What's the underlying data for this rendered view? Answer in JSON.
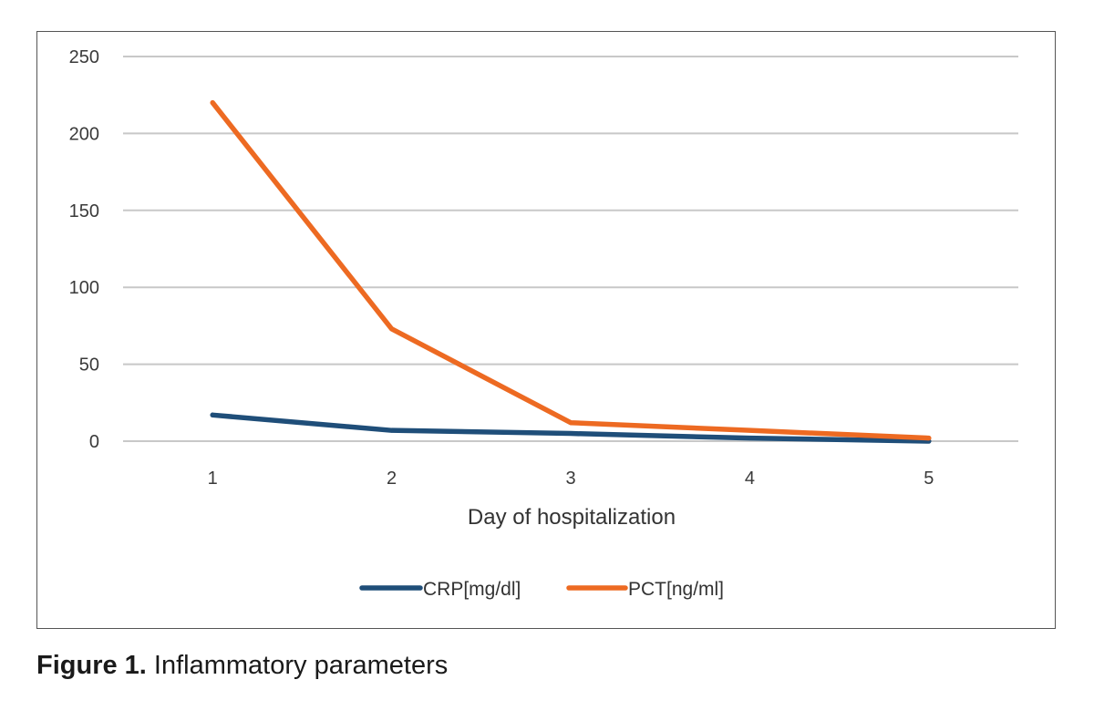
{
  "chart_data": {
    "type": "line",
    "categories": [
      "1",
      "2",
      "3",
      "4",
      "5"
    ],
    "series": [
      {
        "name": "CRP[mg/dl]",
        "values": [
          17,
          7,
          5,
          2,
          0
        ],
        "color": "#1f4e79"
      },
      {
        "name": "PCT[ng/ml]",
        "values": [
          220,
          73,
          12,
          7,
          2
        ],
        "color": "#ed6a22"
      }
    ],
    "title": "",
    "xlabel": "Day of hospitalization",
    "ylabel": "",
    "ylim": [
      0,
      250
    ],
    "yticks": [
      0,
      50,
      100,
      150,
      200,
      250
    ],
    "grid": true,
    "legend_position": "bottom"
  },
  "caption": {
    "label": "Figure 1.",
    "text": " Inflammatory parameters"
  }
}
